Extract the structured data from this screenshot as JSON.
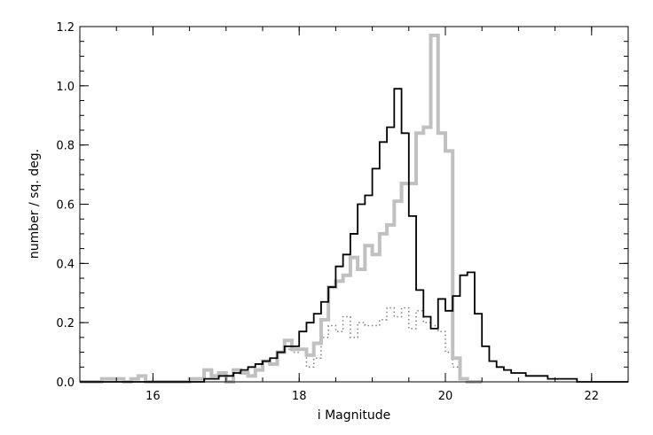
{
  "chart_data": {
    "type": "line",
    "step": true,
    "title": "",
    "xlabel": "i Magnitude",
    "ylabel": "number / sq. deg.",
    "xlim": [
      15.0,
      22.5
    ],
    "ylim": [
      0.0,
      1.2
    ],
    "x_ticks": [
      16,
      18,
      20,
      22
    ],
    "y_ticks": [
      0.0,
      0.2,
      0.4,
      0.6,
      0.8,
      1.0,
      1.2
    ],
    "y_tick_labels": [
      "0.0",
      "0.2",
      "0.4",
      "0.6",
      "0.8",
      "1.0",
      "1.2"
    ],
    "x_minor_step": 0.5,
    "y_minor_step": 0.05,
    "grid": false,
    "legend": "none",
    "series": [
      {
        "style": "thick-gray",
        "color": "#c0c0c0",
        "x": [
          15.0,
          15.1,
          15.2,
          15.3,
          15.4,
          15.5,
          15.6,
          15.7,
          15.8,
          15.9,
          16.0,
          16.1,
          16.2,
          16.3,
          16.4,
          16.5,
          16.6,
          16.7,
          16.8,
          16.9,
          17.0,
          17.1,
          17.2,
          17.3,
          17.4,
          17.5,
          17.6,
          17.7,
          17.8,
          17.9,
          18.0,
          18.1,
          18.2,
          18.3,
          18.4,
          18.5,
          18.6,
          18.7,
          18.8,
          18.9,
          19.0,
          19.1,
          19.2,
          19.3,
          19.4,
          19.5,
          19.6,
          19.7,
          19.8,
          19.9,
          20.0,
          20.1,
          20.2,
          20.3,
          20.4
        ],
        "y": [
          0.0,
          0.0,
          0.0,
          0.01,
          0.01,
          0.01,
          0.0,
          0.01,
          0.02,
          0.0,
          0.0,
          0.0,
          0.0,
          0.0,
          0.0,
          0.01,
          0.01,
          0.04,
          0.02,
          0.03,
          0.0,
          0.04,
          0.03,
          0.02,
          0.04,
          0.07,
          0.06,
          0.1,
          0.14,
          0.11,
          0.11,
          0.09,
          0.13,
          0.21,
          0.32,
          0.34,
          0.36,
          0.42,
          0.38,
          0.46,
          0.43,
          0.5,
          0.53,
          0.61,
          0.67,
          0.67,
          0.84,
          0.86,
          1.17,
          0.84,
          0.78,
          0.08,
          0.01,
          0.0,
          0.0
        ]
      },
      {
        "style": "thin-black",
        "color": "#000000",
        "x": [
          15.0,
          15.1,
          15.2,
          15.3,
          15.4,
          15.5,
          15.6,
          15.7,
          15.8,
          15.9,
          16.0,
          16.1,
          16.2,
          16.3,
          16.4,
          16.5,
          16.6,
          16.7,
          16.8,
          16.9,
          17.0,
          17.1,
          17.2,
          17.3,
          17.4,
          17.5,
          17.6,
          17.7,
          17.8,
          17.9,
          18.0,
          18.1,
          18.2,
          18.3,
          18.4,
          18.5,
          18.6,
          18.7,
          18.8,
          18.9,
          19.0,
          19.1,
          19.2,
          19.3,
          19.4,
          19.5,
          19.6,
          19.7,
          19.8,
          19.9,
          20.0,
          20.1,
          20.2,
          20.3,
          20.4,
          20.5,
          20.6,
          20.7,
          20.8,
          20.9,
          21.0,
          21.1,
          21.2,
          21.3,
          21.4,
          21.5,
          21.6,
          21.7,
          21.8,
          21.9,
          22.0,
          22.1,
          22.2,
          22.3,
          22.4
        ],
        "y": [
          0.0,
          0.0,
          0.0,
          0.0,
          0.0,
          0.0,
          0.0,
          0.0,
          0.0,
          0.0,
          0.0,
          0.0,
          0.0,
          0.0,
          0.0,
          0.0,
          0.0,
          0.01,
          0.01,
          0.02,
          0.02,
          0.03,
          0.04,
          0.05,
          0.06,
          0.07,
          0.08,
          0.1,
          0.12,
          0.12,
          0.17,
          0.2,
          0.23,
          0.27,
          0.32,
          0.39,
          0.43,
          0.5,
          0.6,
          0.63,
          0.72,
          0.81,
          0.86,
          0.99,
          0.84,
          0.56,
          0.31,
          0.22,
          0.18,
          0.28,
          0.24,
          0.29,
          0.36,
          0.37,
          0.23,
          0.12,
          0.07,
          0.05,
          0.04,
          0.03,
          0.03,
          0.02,
          0.02,
          0.02,
          0.01,
          0.01,
          0.01,
          0.01,
          0.0,
          0.0,
          0.0,
          0.0,
          0.0,
          0.0,
          0.0
        ]
      },
      {
        "style": "dotted-gray",
        "color": "#808080",
        "x": [
          17.8,
          17.9,
          18.0,
          18.1,
          18.2,
          18.3,
          18.4,
          18.5,
          18.6,
          18.7,
          18.8,
          18.9,
          19.0,
          19.1,
          19.2,
          19.3,
          19.4,
          19.5,
          19.6,
          19.7,
          19.8,
          19.9,
          20.0,
          20.1
        ],
        "y": [
          0.11,
          0.1,
          0.11,
          0.05,
          0.08,
          0.15,
          0.19,
          0.17,
          0.22,
          0.15,
          0.2,
          0.19,
          0.19,
          0.21,
          0.25,
          0.22,
          0.25,
          0.18,
          0.24,
          0.2,
          0.19,
          0.17,
          0.1,
          0.05
        ]
      }
    ]
  }
}
